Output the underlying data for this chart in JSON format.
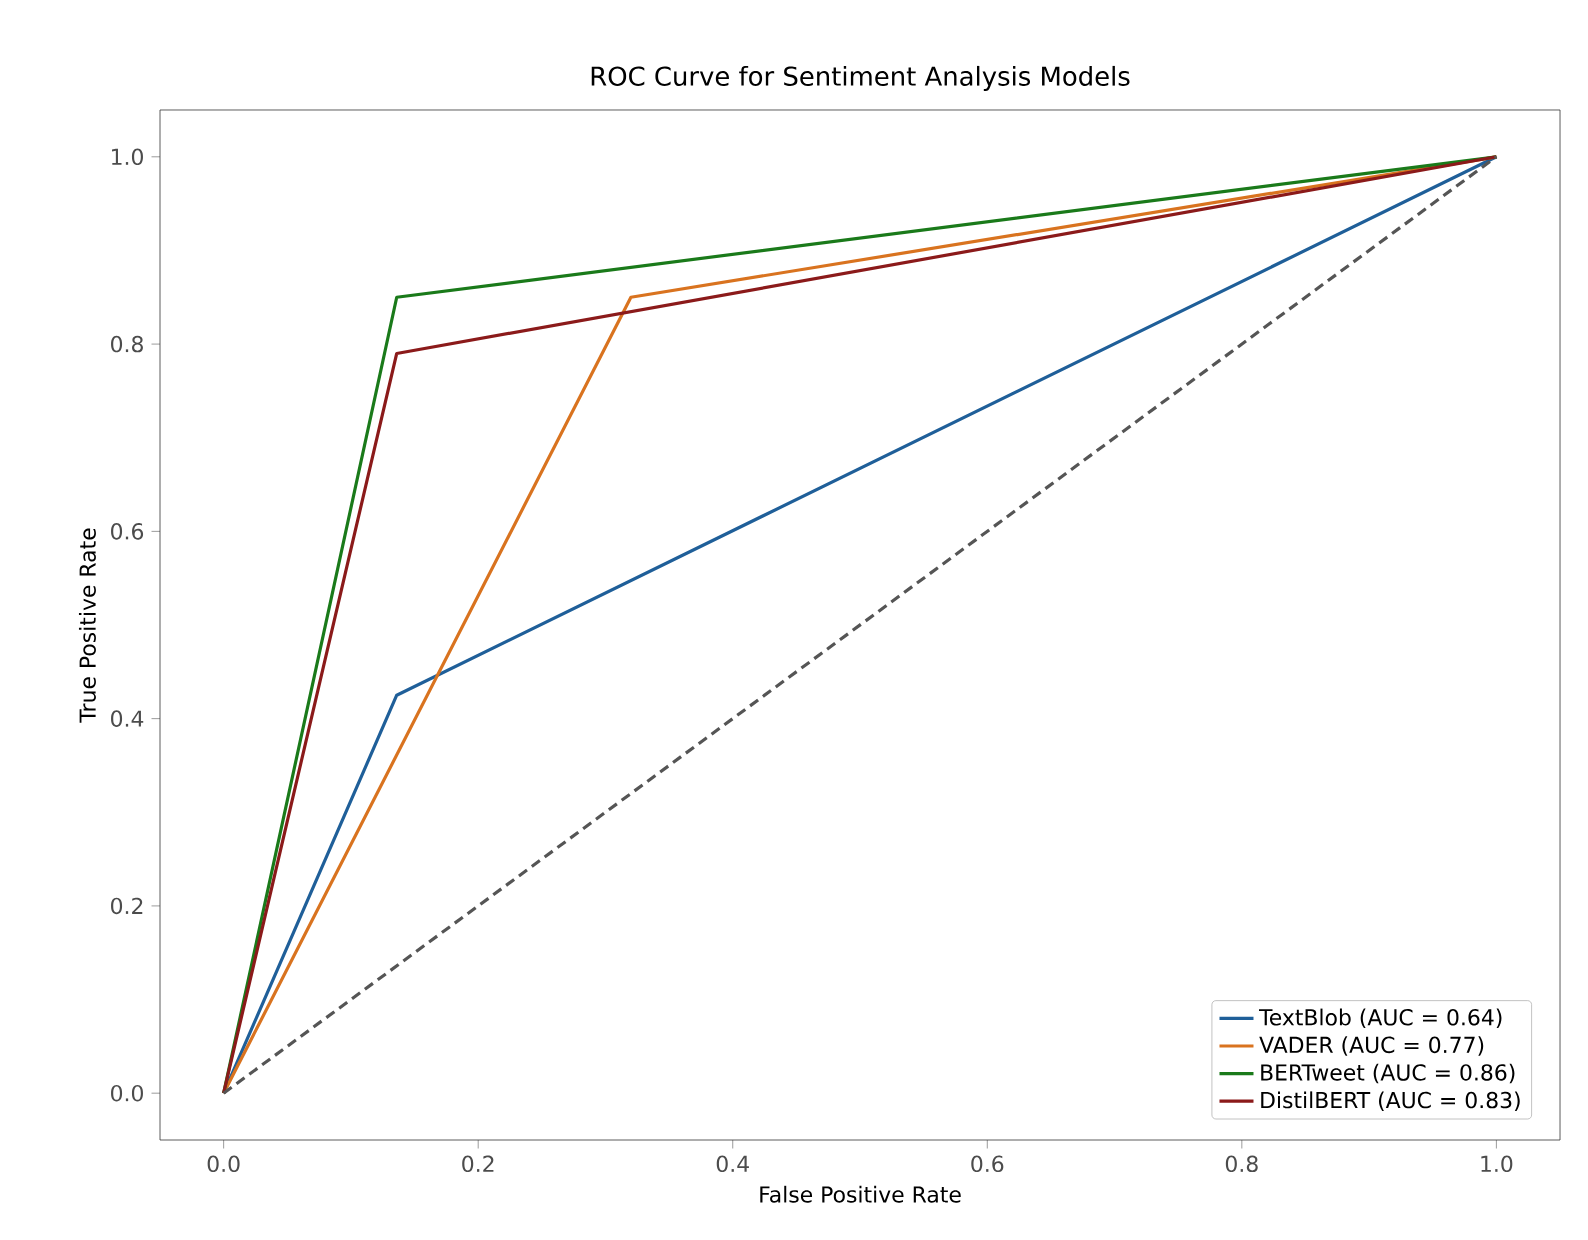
{
  "chart_data": {
    "type": "line",
    "title": "ROC Curve for Sentiment Analysis Models",
    "xlabel": "False Positive Rate",
    "ylabel": "True Positive Rate",
    "xlim": [
      -0.05,
      1.05
    ],
    "ylim": [
      -0.05,
      1.05
    ],
    "xticks": [
      {
        "value": 0,
        "label": "0.0"
      },
      {
        "value": 0.2,
        "label": "0.2"
      },
      {
        "value": 0.4,
        "label": "0.4"
      },
      {
        "value": 0.6,
        "label": "0.6"
      },
      {
        "value": 0.8,
        "label": "0.8"
      },
      {
        "value": 1,
        "label": "1.0"
      }
    ],
    "yticks": [
      {
        "value": 0,
        "label": "0.0"
      },
      {
        "value": 0.2,
        "label": "0.2"
      },
      {
        "value": 0.4,
        "label": "0.4"
      },
      {
        "value": 0.6,
        "label": "0.6"
      },
      {
        "value": 0.8,
        "label": "0.8"
      },
      {
        "value": 1,
        "label": "1.0"
      }
    ],
    "legend": "bottom right",
    "line_style": "solid",
    "series": [
      {
        "name": "TextBlob (AUC = 0.64)",
        "color": "#1f5f99",
        "x": [
          0,
          0.136,
          1
        ],
        "values": [
          0,
          0.425,
          1
        ]
      },
      {
        "name": "VADER (AUC = 0.77)",
        "color": "#d9731f",
        "x": [
          0,
          0.32,
          1
        ],
        "values": [
          0,
          0.85,
          1
        ]
      },
      {
        "name": "BERTweet (AUC = 0.86)",
        "color": "#1a7a1a",
        "x": [
          0,
          0.136,
          1
        ],
        "values": [
          0,
          0.85,
          1
        ]
      },
      {
        "name": "DistilBERT (AUC = 0.83)",
        "color": "#8b1a1a",
        "x": [
          0,
          0.136,
          1
        ],
        "values": [
          0,
          0.79,
          1
        ]
      },
      {
        "color": "#555555",
        "line_style": "dashed",
        "x": [
          0,
          1
        ],
        "values": [
          0,
          1
        ]
      }
    ]
  }
}
